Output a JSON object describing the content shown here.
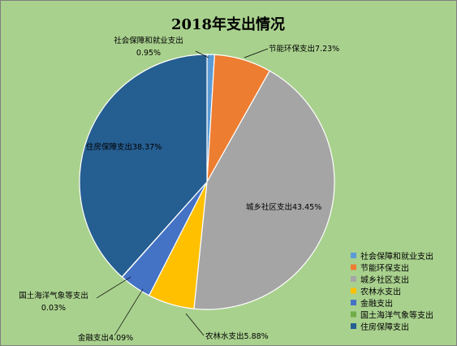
{
  "chart_data": {
    "type": "pie",
    "title": "2018年支出情况",
    "background": "#a9d18e",
    "slices": [
      {
        "name": "社会保障和就业支出",
        "value": 0.95,
        "label": "0.95%",
        "color": "#5b9bd5"
      },
      {
        "name": "节能环保支出",
        "value": 7.23,
        "label": "7.23%",
        "color": "#ed7d31"
      },
      {
        "name": "城乡社区支出",
        "value": 43.45,
        "label": "43.45%",
        "color": "#a5a5a5"
      },
      {
        "name": "农林水支出",
        "value": 5.88,
        "label": "5.88%",
        "color": "#ffc000"
      },
      {
        "name": "金融支出",
        "value": 4.09,
        "label": "4.09%",
        "color": "#4472c4"
      },
      {
        "name": "国土海洋气象等支出",
        "value": 0.03,
        "label": "0.03%",
        "color": "#70ad47"
      },
      {
        "name": "住房保障支出",
        "value": 38.37,
        "label": "38.37%",
        "color": "#255e91"
      }
    ],
    "legend_position": "bottom-right"
  }
}
